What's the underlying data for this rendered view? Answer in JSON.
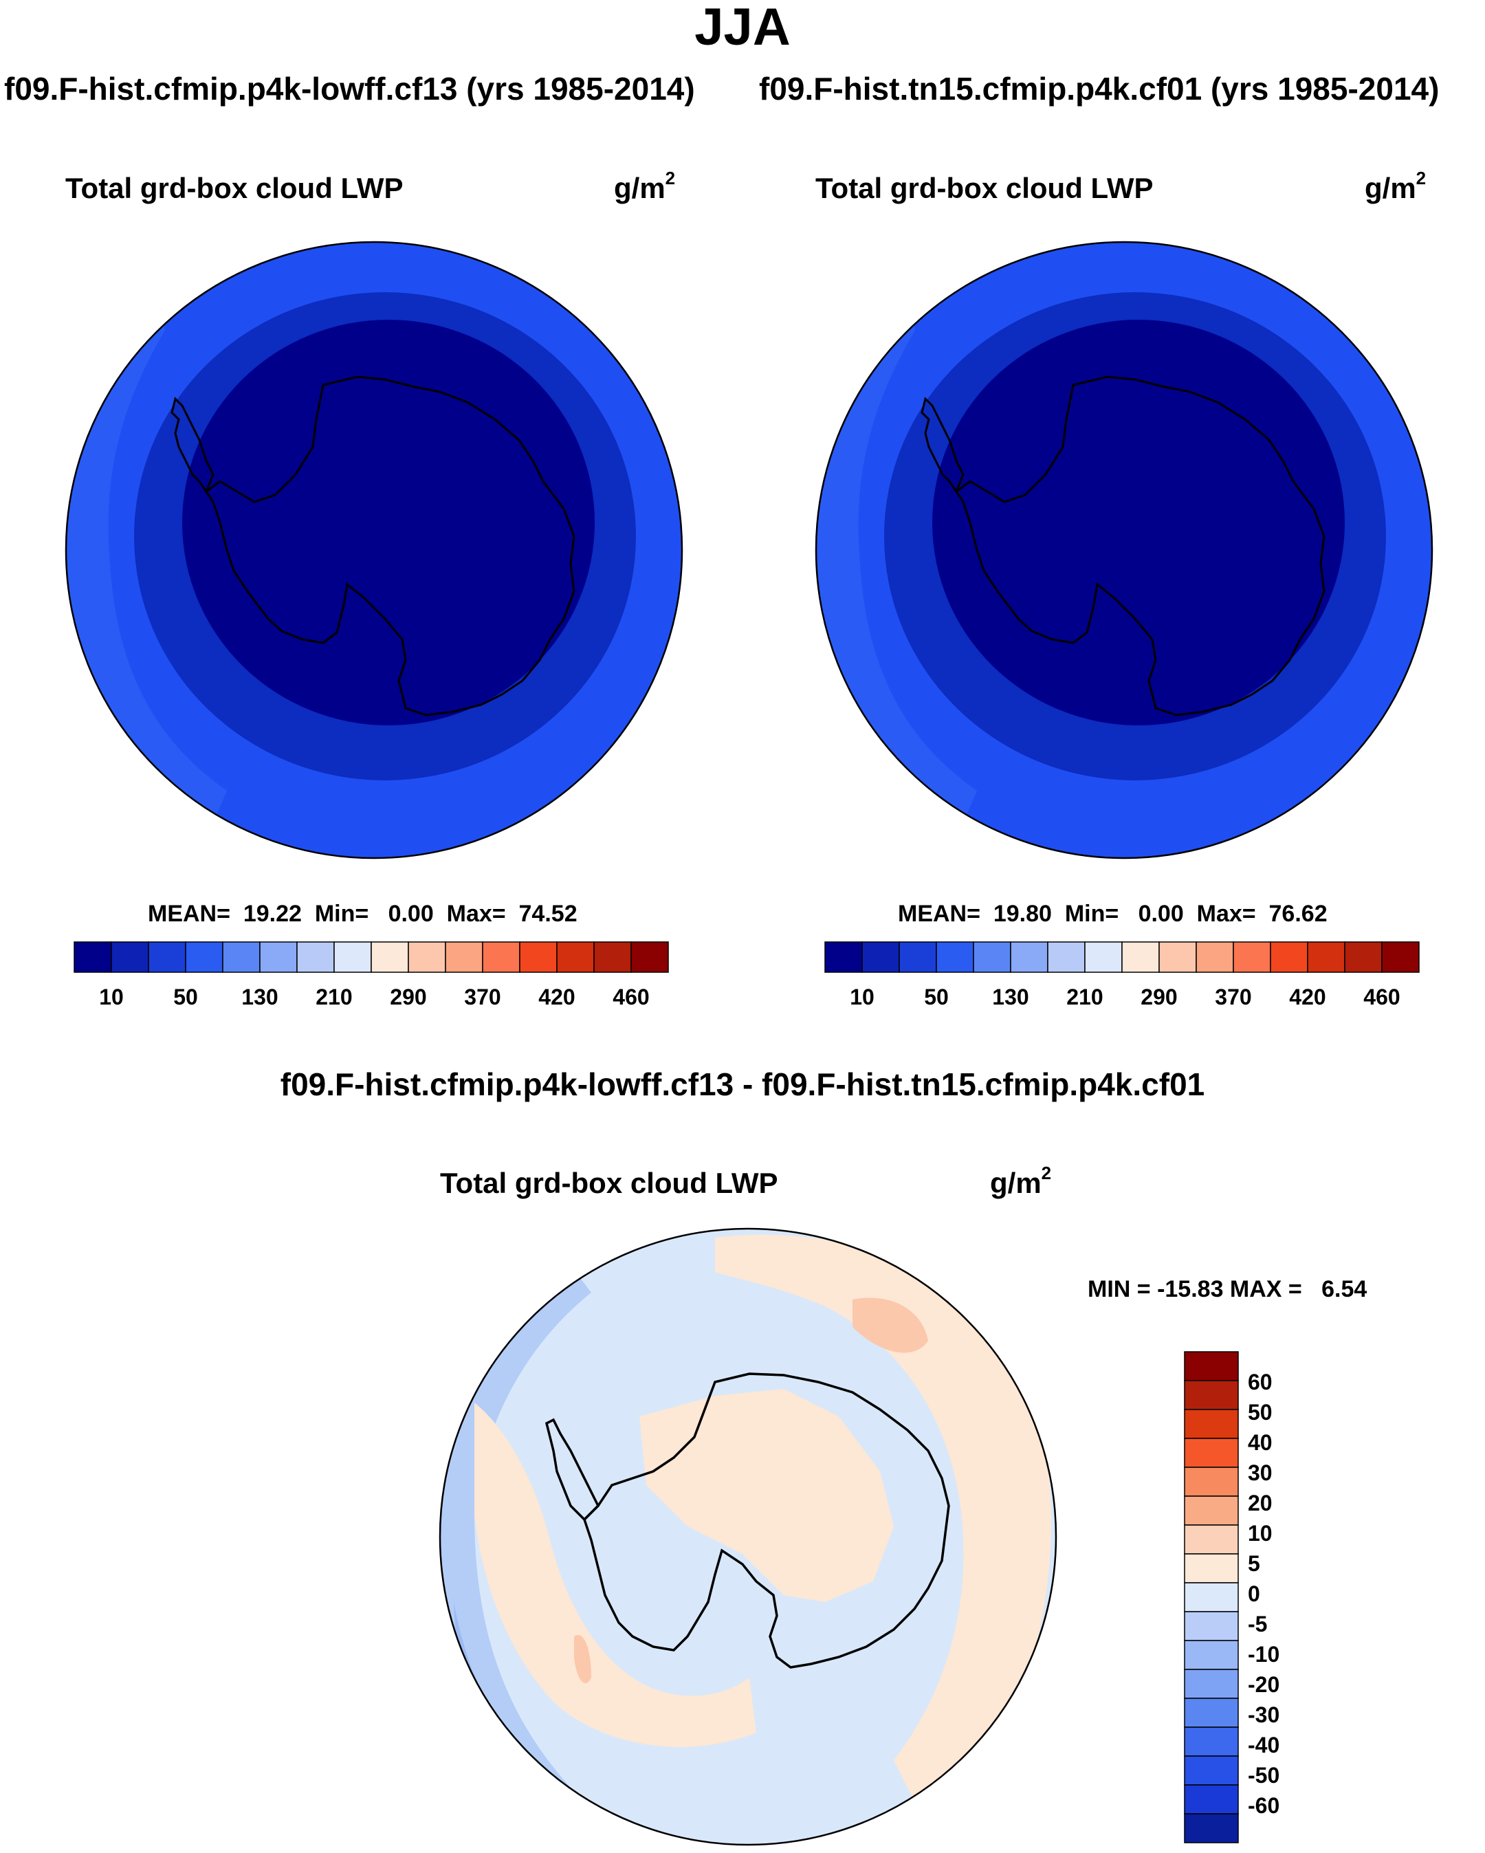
{
  "season": "JJA",
  "top_left": {
    "case_title": "f09.F-hist.cfmip.p4k-lowff.cf13 (yrs 1985-2014)",
    "variable": "Total grd-box cloud LWP",
    "units_base": "g/m",
    "units_exp": "2",
    "stats": "MEAN=  19.22  Min=   0.00  Max=  74.52",
    "mean": 19.22,
    "min": 0.0,
    "max": 74.52
  },
  "top_right": {
    "case_title": "f09.F-hist.tn15.cfmip.p4k.cf01 (yrs 1985-2014)",
    "variable": "Total grd-box cloud LWP",
    "units_base": "g/m",
    "units_exp": "2",
    "stats": "MEAN=  19.80  Min=   0.00  Max=  76.62",
    "mean": 19.8,
    "min": 0.0,
    "max": 76.62
  },
  "abs_colorbar": {
    "colors": [
      "#00008b",
      "#0d22b4",
      "#1a3fd9",
      "#2a5cf2",
      "#5a86f5",
      "#8aaaf7",
      "#b8cbf8",
      "#dde8fb",
      "#fde9d9",
      "#fcc7ad",
      "#fba582",
      "#fa7550",
      "#f2471e",
      "#d2300f",
      "#b21f0b",
      "#8b0000"
    ],
    "labels": [
      "10",
      "50",
      "130",
      "210",
      "290",
      "370",
      "420",
      "460"
    ]
  },
  "diff": {
    "title": "f09.F-hist.cfmip.p4k-lowff.cf13 - f09.F-hist.tn15.cfmip.p4k.cf01",
    "variable": "Total grd-box cloud LWP",
    "units_base": "g/m",
    "units_exp": "2",
    "stats": "MIN = -15.83 MAX =   6.54",
    "min": -15.83,
    "max": 6.54
  },
  "diff_colorbar": {
    "colors": [
      "#8b0000",
      "#b2200c",
      "#dc3a10",
      "#f5572a",
      "#f78a5e",
      "#f9ab86",
      "#fbd1b9",
      "#fde9d8",
      "#dce9fb",
      "#b9cdf8",
      "#9ab7f6",
      "#7ea3f4",
      "#5a86f2",
      "#3c69ee",
      "#2851e8",
      "#1a3ad8",
      "#0a1f9c"
    ],
    "labels": [
      "60",
      "50",
      "40",
      "30",
      "20",
      "10",
      "5",
      "0",
      "-5",
      "-10",
      "-20",
      "-30",
      "-40",
      "-50",
      "-60"
    ]
  },
  "map_colors": {
    "outer": "#1f4ff2",
    "mid": "#0d2cc0",
    "inner": "#00008b",
    "diff_base": "#d8e8fa",
    "diff_pos": "#fde7d5",
    "diff_pos2": "#fbc8ac",
    "diff_neg": "#b4cdf7",
    "diff_neg2": "#9cbaf3"
  }
}
